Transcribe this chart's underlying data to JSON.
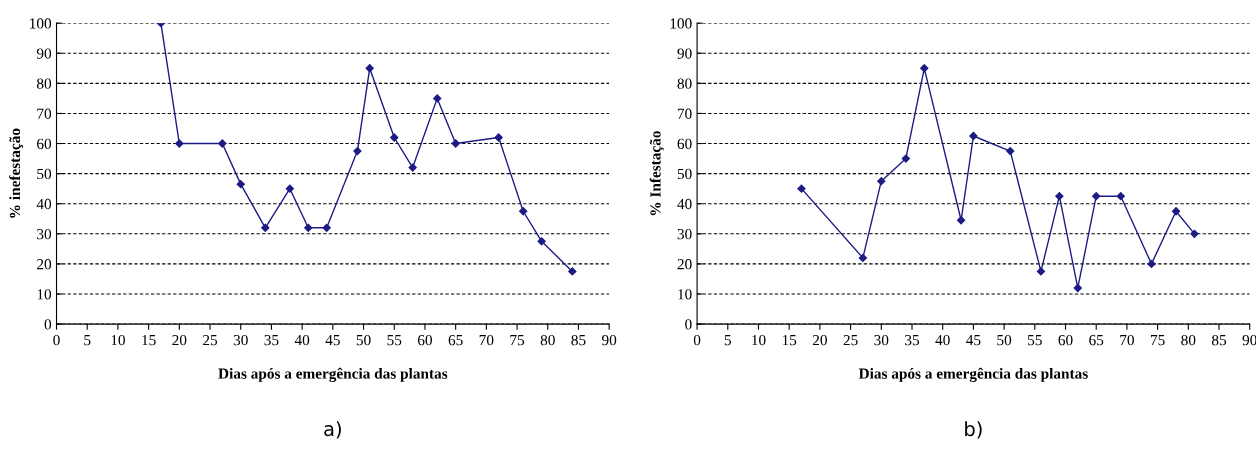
{
  "chart_data": [
    {
      "type": "line",
      "xlabel": "Dias após a emergência das plantas",
      "ylabel": "% inefestação",
      "annotations": [
        "a)"
      ],
      "x": [
        17,
        20,
        27,
        30,
        34,
        38,
        41,
        44,
        49,
        51,
        55,
        58,
        62,
        65,
        72,
        76,
        79,
        84
      ],
      "series": [
        {
          "color": "#1c1c84",
          "values": [
            100,
            60,
            60,
            46.5,
            32,
            45,
            32,
            32,
            57.5,
            85,
            62,
            52,
            75,
            60,
            62,
            37.5,
            27.5,
            17.5
          ]
        }
      ],
      "xlim": [
        0,
        90
      ],
      "xticks": [
        0,
        5,
        10,
        15,
        20,
        25,
        30,
        35,
        40,
        45,
        50,
        55,
        60,
        65,
        70,
        75,
        80,
        85,
        90
      ],
      "ylim": [
        0,
        100
      ],
      "yticks": [
        0,
        10,
        20,
        30,
        40,
        50,
        60,
        70,
        80,
        90,
        100
      ],
      "grid": "y",
      "legend": false,
      "marker": "diamond",
      "line_style": "solid"
    },
    {
      "type": "line",
      "xlabel": "Dias após a emergência das plantas",
      "ylabel": "% Infestação",
      "annotations": [
        "b)"
      ],
      "x": [
        17,
        27,
        30,
        34,
        37,
        43,
        45,
        51,
        56,
        59,
        62,
        65,
        69,
        74,
        78,
        81
      ],
      "series": [
        {
          "color": "#1c1c84",
          "values": [
            45,
            22,
            47.5,
            55,
            85,
            34.5,
            62.5,
            57.5,
            17.5,
            42.5,
            12,
            42.5,
            42.5,
            20,
            37.5,
            30
          ]
        }
      ],
      "xlim": [
        0,
        90
      ],
      "xticks": [
        0,
        5,
        10,
        15,
        20,
        25,
        30,
        35,
        40,
        45,
        50,
        55,
        60,
        65,
        70,
        75,
        80,
        85,
        90
      ],
      "ylim": [
        0,
        100
      ],
      "yticks": [
        0,
        10,
        20,
        30,
        40,
        50,
        60,
        70,
        80,
        90,
        100
      ],
      "grid": "y",
      "legend": false,
      "marker": "diamond",
      "line_style": "solid"
    }
  ]
}
